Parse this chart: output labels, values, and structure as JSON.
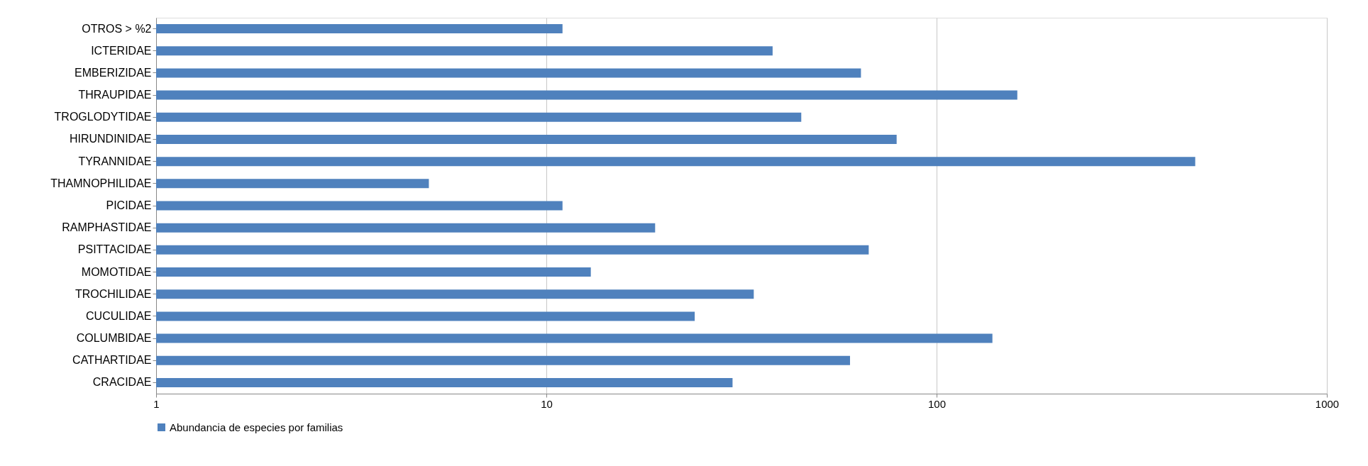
{
  "chart_data": {
    "type": "bar",
    "orientation": "horizontal",
    "log": "x",
    "categories": [
      "OTROS > %2",
      "ICTERIDAE",
      "EMBERIZIDAE",
      "THRAUPIDAE",
      "TROGLODYTIDAE",
      "HIRUNDINIDAE",
      "TYRANNIDAE",
      "THAMNOPHILIDAE",
      "PICIDAE",
      "RAMPHASTIDAE",
      "PSITTACIDAE",
      "MOMOTIDAE",
      "TROCHILIDAE",
      "CUCULIDAE",
      "COLUMBIDAE",
      "CATHARTIDAE",
      "CRACIDAE"
    ],
    "series": [
      {
        "name": "Abundancia de especies por familias",
        "color": "#4f81bd",
        "values": [
          11,
          38,
          64,
          161,
          45,
          79,
          460,
          5,
          11,
          19,
          67,
          13,
          34,
          24,
          139,
          60,
          30
        ]
      }
    ],
    "xlim": [
      1,
      1000
    ],
    "xticks": [
      1,
      10,
      100,
      1000
    ],
    "grid": "x",
    "legend": "bottom"
  }
}
